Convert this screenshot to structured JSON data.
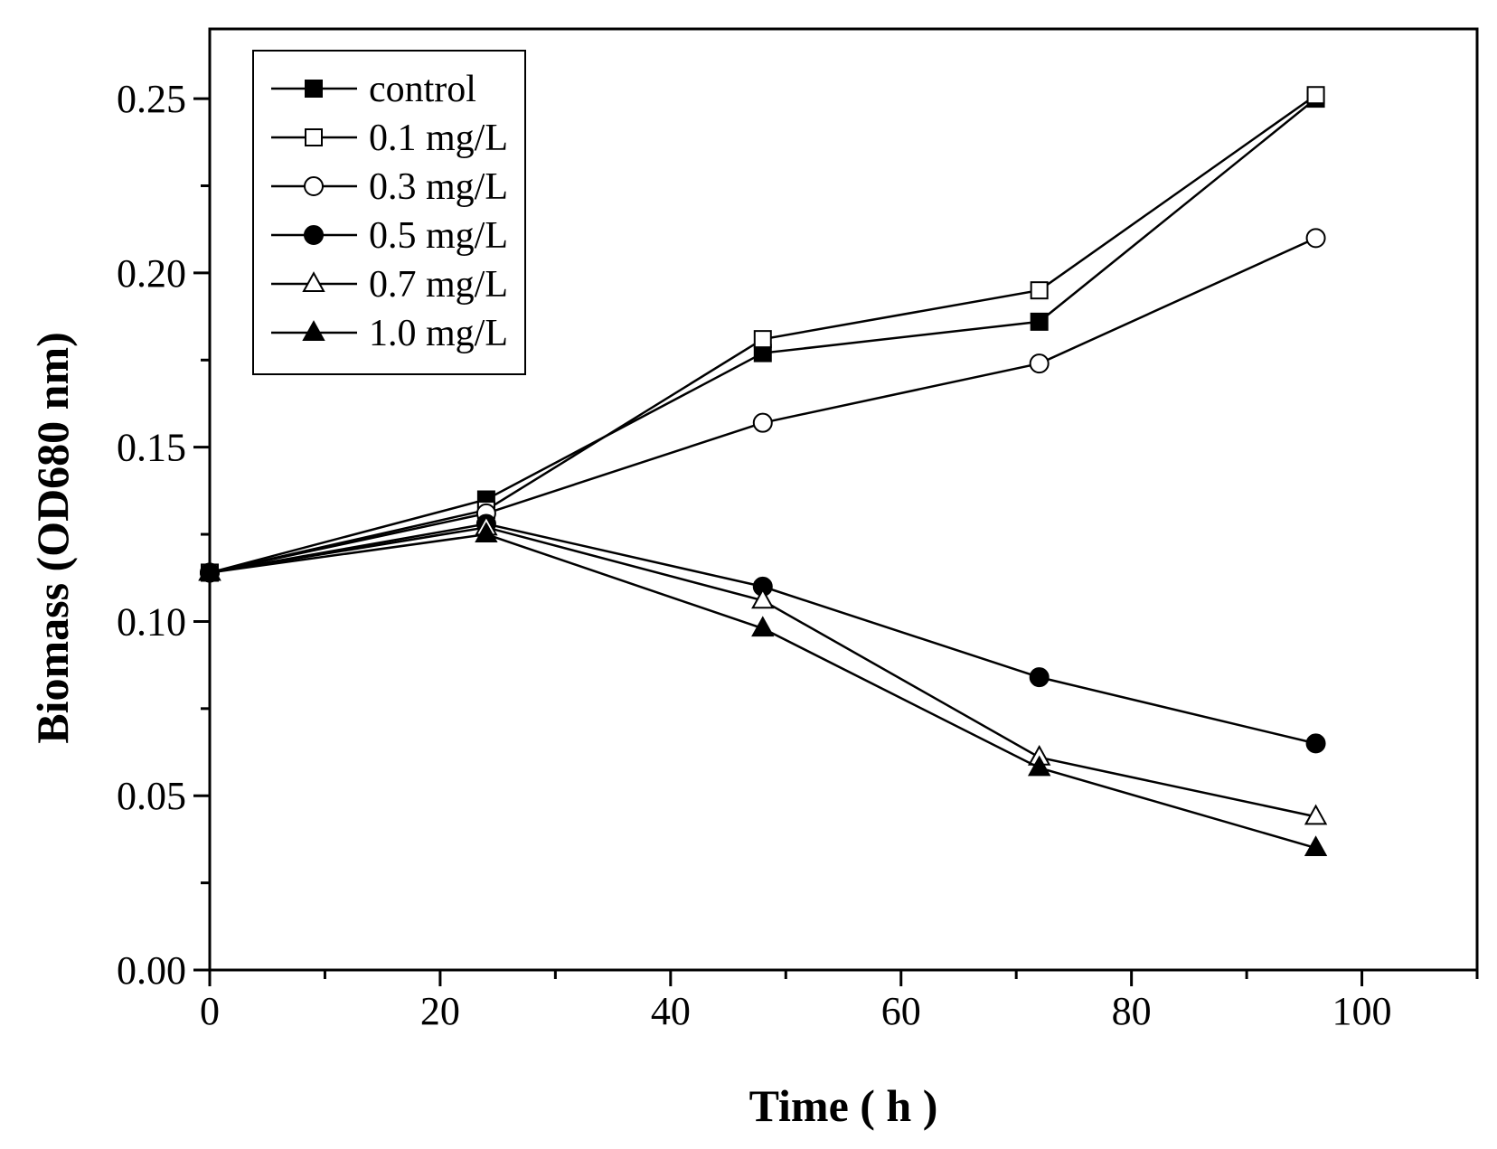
{
  "chart_data": {
    "type": "line",
    "xlabel": "Time ( h )",
    "ylabel": "Biomass (OD680 nm)",
    "xlim": [
      0,
      110
    ],
    "ylim": [
      0,
      0.27
    ],
    "x_ticks": [
      0,
      20,
      40,
      60,
      80,
      100
    ],
    "x_tick_labels": [
      "0",
      "20",
      "40",
      "60",
      "80",
      "100"
    ],
    "y_ticks": [
      0,
      0.05,
      0.1,
      0.15,
      0.2,
      0.25
    ],
    "y_tick_labels": [
      "0.00",
      "0.05",
      "0.10",
      "0.15",
      "0.20",
      "0.25"
    ],
    "grid": false,
    "legend_position": "top-left",
    "x": [
      0,
      24,
      48,
      72,
      96
    ],
    "series": [
      {
        "name": "control",
        "marker": "square-filled",
        "values": [
          0.114,
          0.135,
          0.177,
          0.186,
          0.25
        ]
      },
      {
        "name": "0.1 mg/L",
        "marker": "square-open",
        "values": [
          0.114,
          0.132,
          0.181,
          0.195,
          0.251
        ]
      },
      {
        "name": "0.3 mg/L",
        "marker": "circle-open",
        "values": [
          0.114,
          0.131,
          0.157,
          0.174,
          0.21
        ]
      },
      {
        "name": "0.5 mg/L",
        "marker": "circle-filled",
        "values": [
          0.114,
          0.128,
          0.11,
          0.084,
          0.065
        ]
      },
      {
        "name": "0.7 mg/L",
        "marker": "triangle-open",
        "values": [
          0.114,
          0.127,
          0.106,
          0.061,
          0.044
        ]
      },
      {
        "name": "1.0 mg/L",
        "marker": "triangle-filled",
        "values": [
          0.114,
          0.125,
          0.098,
          0.058,
          0.035
        ]
      }
    ],
    "colors": {
      "line": "#000000",
      "background": "#ffffff"
    }
  }
}
